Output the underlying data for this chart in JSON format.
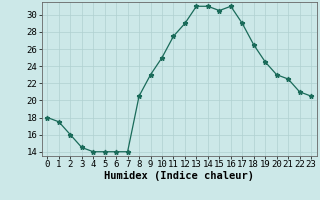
{
  "x": [
    0,
    1,
    2,
    3,
    4,
    5,
    6,
    7,
    8,
    9,
    10,
    11,
    12,
    13,
    14,
    15,
    16,
    17,
    18,
    19,
    20,
    21,
    22,
    23
  ],
  "y": [
    18,
    17.5,
    16,
    14.5,
    14,
    14,
    14,
    14,
    20.5,
    23,
    25,
    27.5,
    29,
    31,
    31,
    30.5,
    31,
    29,
    26.5,
    24.5,
    23,
    22.5,
    21,
    20.5
  ],
  "line_color": "#1a6b5a",
  "marker": "*",
  "marker_size": 3.5,
  "bg_color": "#cce8e8",
  "grid_color_major": "#b0d0d0",
  "grid_color_minor": "#c0dcdc",
  "xlabel": "Humidex (Indice chaleur)",
  "ylim": [
    13.5,
    31.5
  ],
  "yticks": [
    14,
    16,
    18,
    20,
    22,
    24,
    26,
    28,
    30
  ],
  "xlim": [
    -0.5,
    23.5
  ],
  "xticks": [
    0,
    1,
    2,
    3,
    4,
    5,
    6,
    7,
    8,
    9,
    10,
    11,
    12,
    13,
    14,
    15,
    16,
    17,
    18,
    19,
    20,
    21,
    22,
    23
  ],
  "tick_fontsize": 6.5,
  "xlabel_fontsize": 7.5,
  "line_width": 0.9
}
